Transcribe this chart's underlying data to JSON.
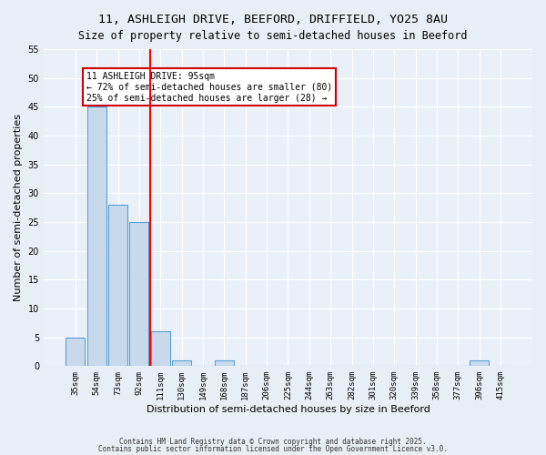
{
  "title1": "11, ASHLEIGH DRIVE, BEEFORD, DRIFFIELD, YO25 8AU",
  "title2": "Size of property relative to semi-detached houses in Beeford",
  "xlabel": "Distribution of semi-detached houses by size in Beeford",
  "ylabel": "Number of semi-detached properties",
  "categories": [
    "35sqm",
    "54sqm",
    "73sqm",
    "92sqm",
    "111sqm",
    "130sqm",
    "149sqm",
    "168sqm",
    "187sqm",
    "206sqm",
    "225sqm",
    "244sqm",
    "263sqm",
    "282sqm",
    "301sqm",
    "320sqm",
    "339sqm",
    "358sqm",
    "377sqm",
    "396sqm",
    "415sqm"
  ],
  "values": [
    5,
    45,
    28,
    25,
    6,
    1,
    0,
    1,
    0,
    0,
    0,
    0,
    0,
    0,
    0,
    0,
    0,
    0,
    0,
    1,
    0
  ],
  "bar_color": "#c8d9ec",
  "bar_edge_color": "#5a9fd4",
  "red_line_x": 3.5,
  "annotation_title": "11 ASHLEIGH DRIVE: 95sqm",
  "annotation_line1": "← 72% of semi-detached houses are smaller (80)",
  "annotation_line2": "25% of semi-detached houses are larger (28) →",
  "annotation_box_color": "#ffffff",
  "annotation_box_edge": "#cc0000",
  "ylim": [
    0,
    55
  ],
  "yticks": [
    0,
    5,
    10,
    15,
    20,
    25,
    30,
    35,
    40,
    45,
    50,
    55
  ],
  "footnote1": "Contains HM Land Registry data © Crown copyright and database right 2025.",
  "footnote2": "Contains public sector information licensed under the Open Government Licence v3.0.",
  "bg_color": "#e8eef5",
  "plot_bg_color": "#eaf0f8"
}
